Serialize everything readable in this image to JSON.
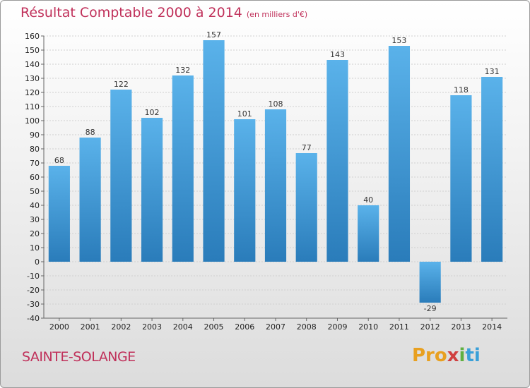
{
  "header": {
    "title": "Résultat Comptable 2000 à 2014",
    "subtitle": "(en milliers d'€)"
  },
  "footer": {
    "town": "SAINTE-SOLANGE",
    "logo": [
      "Pro",
      "x",
      "i",
      "ti"
    ]
  },
  "colors": {
    "title": "#c0305a",
    "bar_light": "#5ab2ea",
    "bar_dark": "#2a7cba"
  },
  "chart_data": {
    "type": "bar",
    "title": "Résultat Comptable 2000 à 2014",
    "xlabel": "",
    "ylabel": "",
    "ylim": [
      -40,
      160
    ],
    "ytick_step": 10,
    "grid": true,
    "categories": [
      "2000",
      "2001",
      "2002",
      "2003",
      "2004",
      "2005",
      "2006",
      "2007",
      "2008",
      "2009",
      "2010",
      "2011",
      "2012",
      "2013",
      "2014"
    ],
    "values": [
      68,
      88,
      122,
      102,
      132,
      157,
      101,
      108,
      77,
      143,
      40,
      153,
      -29,
      118,
      131
    ]
  }
}
